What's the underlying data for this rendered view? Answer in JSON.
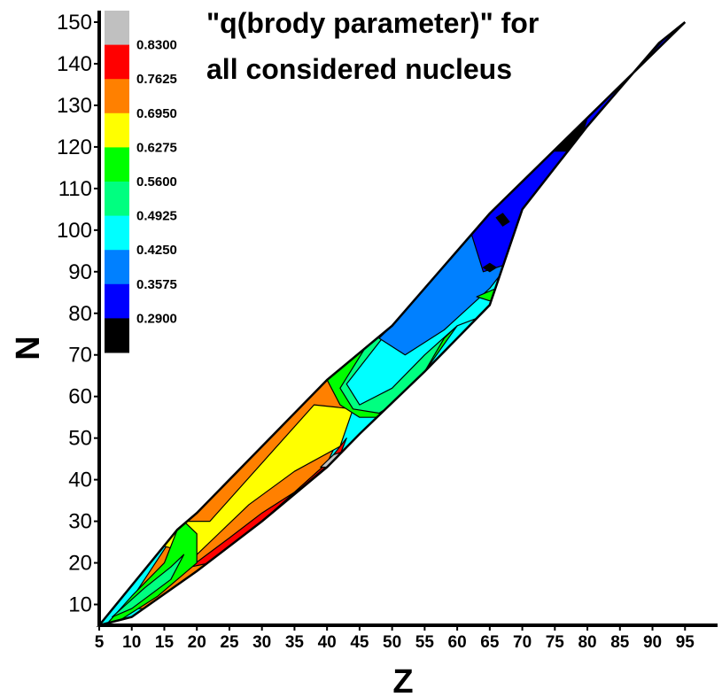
{
  "chart_data": {
    "type": "heatmap",
    "title_line1": "\"q(brody parameter)\" for",
    "title_line2": "all considered nucleus",
    "xlabel": "Z",
    "ylabel": "N",
    "xlim": [
      5,
      100
    ],
    "ylim": [
      5,
      150
    ],
    "x_ticks": [
      "5",
      "10",
      "15",
      "20",
      "25",
      "30",
      "35",
      "40",
      "45",
      "50",
      "55",
      "60",
      "65",
      "70",
      "75",
      "80",
      "85",
      "90",
      "95"
    ],
    "y_ticks": [
      "10",
      "20",
      "30",
      "40",
      "50",
      "60",
      "70",
      "80",
      "90",
      "100",
      "110",
      "120",
      "130",
      "140",
      "150"
    ],
    "legend": {
      "levels": [
        "0.8300",
        "0.7625",
        "0.6950",
        "0.6275",
        "0.5600",
        "0.4925",
        "0.4250",
        "0.3575",
        "0.2900"
      ],
      "colors": [
        "#c0c0c0",
        "#ff0000",
        "#ff8000",
        "#ffff00",
        "#00ff00",
        "#00ff80",
        "#00ffff",
        "#0080ff",
        "#0000ff",
        "#000000"
      ]
    },
    "boundary": {
      "upper": [
        [
          5,
          5
        ],
        [
          17,
          28
        ],
        [
          20,
          32
        ],
        [
          40,
          64
        ],
        [
          50,
          77
        ],
        [
          65,
          104
        ],
        [
          95,
          150
        ]
      ],
      "lower": [
        [
          95,
          150
        ],
        [
          91,
          145
        ],
        [
          80,
          125
        ],
        [
          70,
          105
        ],
        [
          65,
          82
        ],
        [
          55,
          66
        ],
        [
          45,
          51
        ],
        [
          40,
          43
        ],
        [
          30,
          30
        ],
        [
          20,
          18
        ],
        [
          10,
          7
        ],
        [
          5,
          5
        ]
      ]
    },
    "regions": [
      {
        "level": 2,
        "points": [
          [
            9,
            9
          ],
          [
            17,
            28
          ],
          [
            20,
            32
          ],
          [
            40,
            64
          ],
          [
            44,
            57
          ],
          [
            40,
            44
          ],
          [
            30,
            30
          ],
          [
            20,
            18
          ],
          [
            12,
            9
          ]
        ]
      },
      {
        "level": 3,
        "points": [
          [
            15,
            24
          ],
          [
            18,
            30
          ],
          [
            22,
            30
          ],
          [
            38,
            58
          ],
          [
            44,
            57
          ],
          [
            42,
            48
          ],
          [
            35,
            42
          ],
          [
            28,
            34
          ],
          [
            24,
            28
          ],
          [
            20,
            22
          ]
        ]
      },
      {
        "level": 1,
        "points": [
          [
            19,
            19
          ],
          [
            25,
            26
          ],
          [
            30,
            32
          ],
          [
            36,
            38
          ],
          [
            42,
            46
          ],
          [
            43,
            50
          ],
          [
            40,
            44
          ],
          [
            30,
            30
          ],
          [
            22,
            20
          ]
        ]
      },
      {
        "level": 0,
        "points": [
          [
            39,
            43
          ],
          [
            41,
            46
          ],
          [
            43,
            47
          ],
          [
            41,
            43
          ]
        ]
      },
      {
        "level": 4,
        "points": [
          [
            6,
            5
          ],
          [
            10,
            12
          ],
          [
            15,
            20
          ],
          [
            17,
            28
          ],
          [
            18,
            30
          ],
          [
            20,
            27
          ],
          [
            20,
            20
          ],
          [
            14,
            12
          ],
          [
            8,
            6
          ]
        ]
      },
      {
        "level": 5,
        "points": [
          [
            7,
            7
          ],
          [
            12,
            14
          ],
          [
            16,
            19
          ],
          [
            18,
            22
          ],
          [
            16,
            16
          ],
          [
            10,
            9
          ]
        ]
      },
      {
        "level": 4,
        "points": [
          [
            40,
            64
          ],
          [
            42,
            58
          ],
          [
            45,
            55
          ],
          [
            50,
            55
          ],
          [
            55,
            66
          ],
          [
            60,
            77
          ],
          [
            65,
            82
          ],
          [
            67,
            84
          ],
          [
            56,
            84
          ],
          [
            50,
            77
          ]
        ]
      },
      {
        "level": 5,
        "points": [
          [
            42,
            62
          ],
          [
            44,
            57
          ],
          [
            48,
            56
          ],
          [
            52,
            60
          ],
          [
            55,
            66
          ],
          [
            58,
            74
          ],
          [
            62,
            80
          ],
          [
            66,
            84
          ],
          [
            60,
            86
          ],
          [
            52,
            80
          ],
          [
            46,
            72
          ]
        ]
      },
      {
        "level": 6,
        "points": [
          [
            43,
            63
          ],
          [
            45,
            58
          ],
          [
            50,
            62
          ],
          [
            55,
            70
          ],
          [
            60,
            77
          ],
          [
            65,
            80
          ],
          [
            68,
            86
          ],
          [
            70,
            105
          ],
          [
            80,
            125
          ],
          [
            85,
            130
          ],
          [
            90,
            142
          ],
          [
            95,
            150
          ],
          [
            65,
            104
          ],
          [
            50,
            77
          ]
        ]
      },
      {
        "level": 7,
        "points": [
          [
            48,
            74
          ],
          [
            52,
            70
          ],
          [
            58,
            76
          ],
          [
            65,
            86
          ],
          [
            72,
            100
          ],
          [
            80,
            118
          ],
          [
            88,
            134
          ],
          [
            91,
            145
          ],
          [
            95,
            150
          ],
          [
            65,
            104
          ],
          [
            50,
            77
          ]
        ]
      },
      {
        "level": 8,
        "points": [
          [
            62,
            100
          ],
          [
            64,
            90
          ],
          [
            68,
            92
          ],
          [
            74,
            106
          ],
          [
            80,
            120
          ],
          [
            86,
            136
          ],
          [
            93,
            148
          ],
          [
            95,
            150
          ],
          [
            65,
            104
          ]
        ]
      },
      {
        "level": 4,
        "points": [
          [
            63,
            84
          ],
          [
            66,
            86
          ],
          [
            68,
            85
          ],
          [
            65,
            83
          ]
        ]
      },
      {
        "level": 4,
        "points": [
          [
            84,
            120
          ],
          [
            86,
            126
          ],
          [
            88,
            127
          ],
          [
            86,
            122
          ]
        ]
      },
      {
        "level": 9,
        "points": [
          [
            75,
            119
          ],
          [
            77,
            124
          ],
          [
            80,
            127
          ],
          [
            79,
            122
          ],
          [
            77,
            119
          ]
        ]
      },
      {
        "level": 9,
        "points": [
          [
            66,
            103
          ],
          [
            67,
            104
          ],
          [
            68,
            102
          ],
          [
            67,
            101
          ]
        ]
      },
      {
        "level": 9,
        "points": [
          [
            64,
            91
          ],
          [
            65,
            92
          ],
          [
            66,
            91
          ],
          [
            65,
            90
          ]
        ]
      }
    ]
  }
}
